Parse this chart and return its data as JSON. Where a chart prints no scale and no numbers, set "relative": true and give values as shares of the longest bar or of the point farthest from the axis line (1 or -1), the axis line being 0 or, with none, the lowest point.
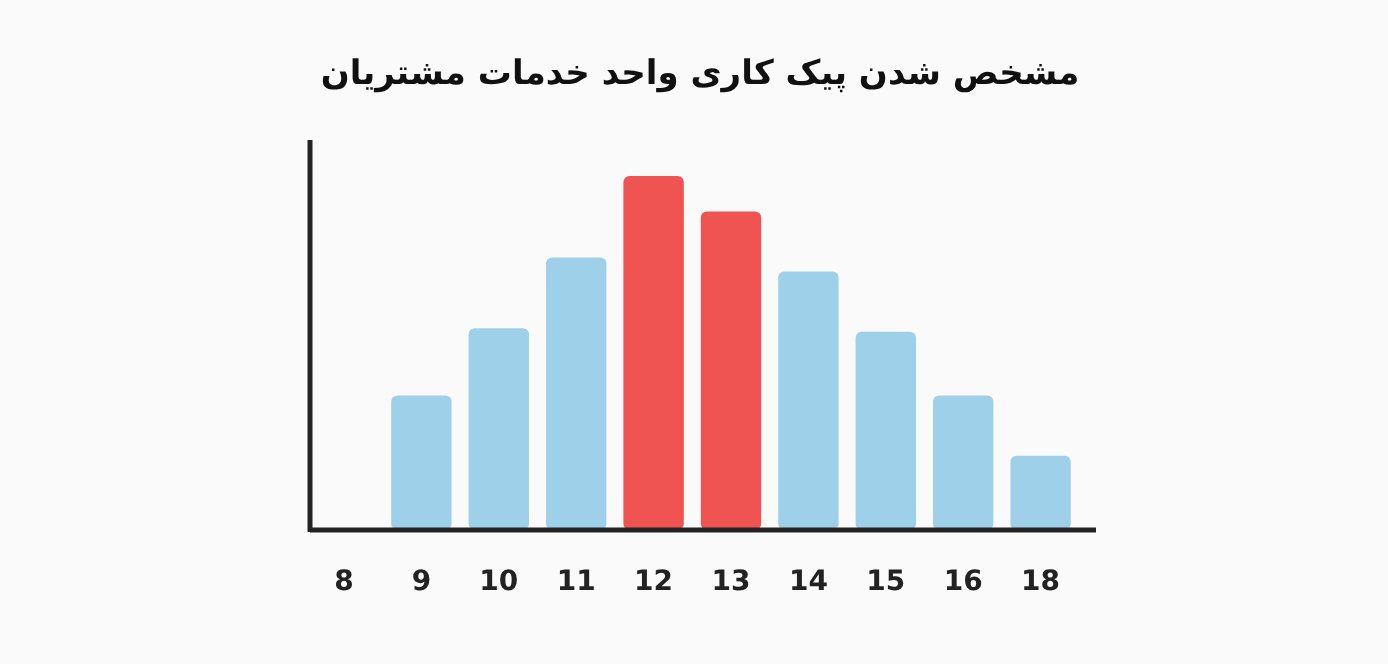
{
  "chart_data": {
    "type": "bar",
    "title": "مشخص شدن پیک کاری واحد خدمات مشتریان",
    "relative": true,
    "categories": [
      "8",
      "9",
      "10",
      "11",
      "12",
      "13",
      "14",
      "15",
      "16",
      "18"
    ],
    "values": [
      null,
      0.38,
      0.57,
      0.77,
      1,
      0.9,
      0.73,
      0.56,
      0.38,
      0.21
    ],
    "colors": [
      null,
      "#9ed1e9",
      "#9ed1e9",
      "#9ed1e9",
      "#f05452",
      "#f05452",
      "#9ed1e9",
      "#9ed1e9",
      "#9ed1e9",
      "#9ed1e9"
    ]
  }
}
